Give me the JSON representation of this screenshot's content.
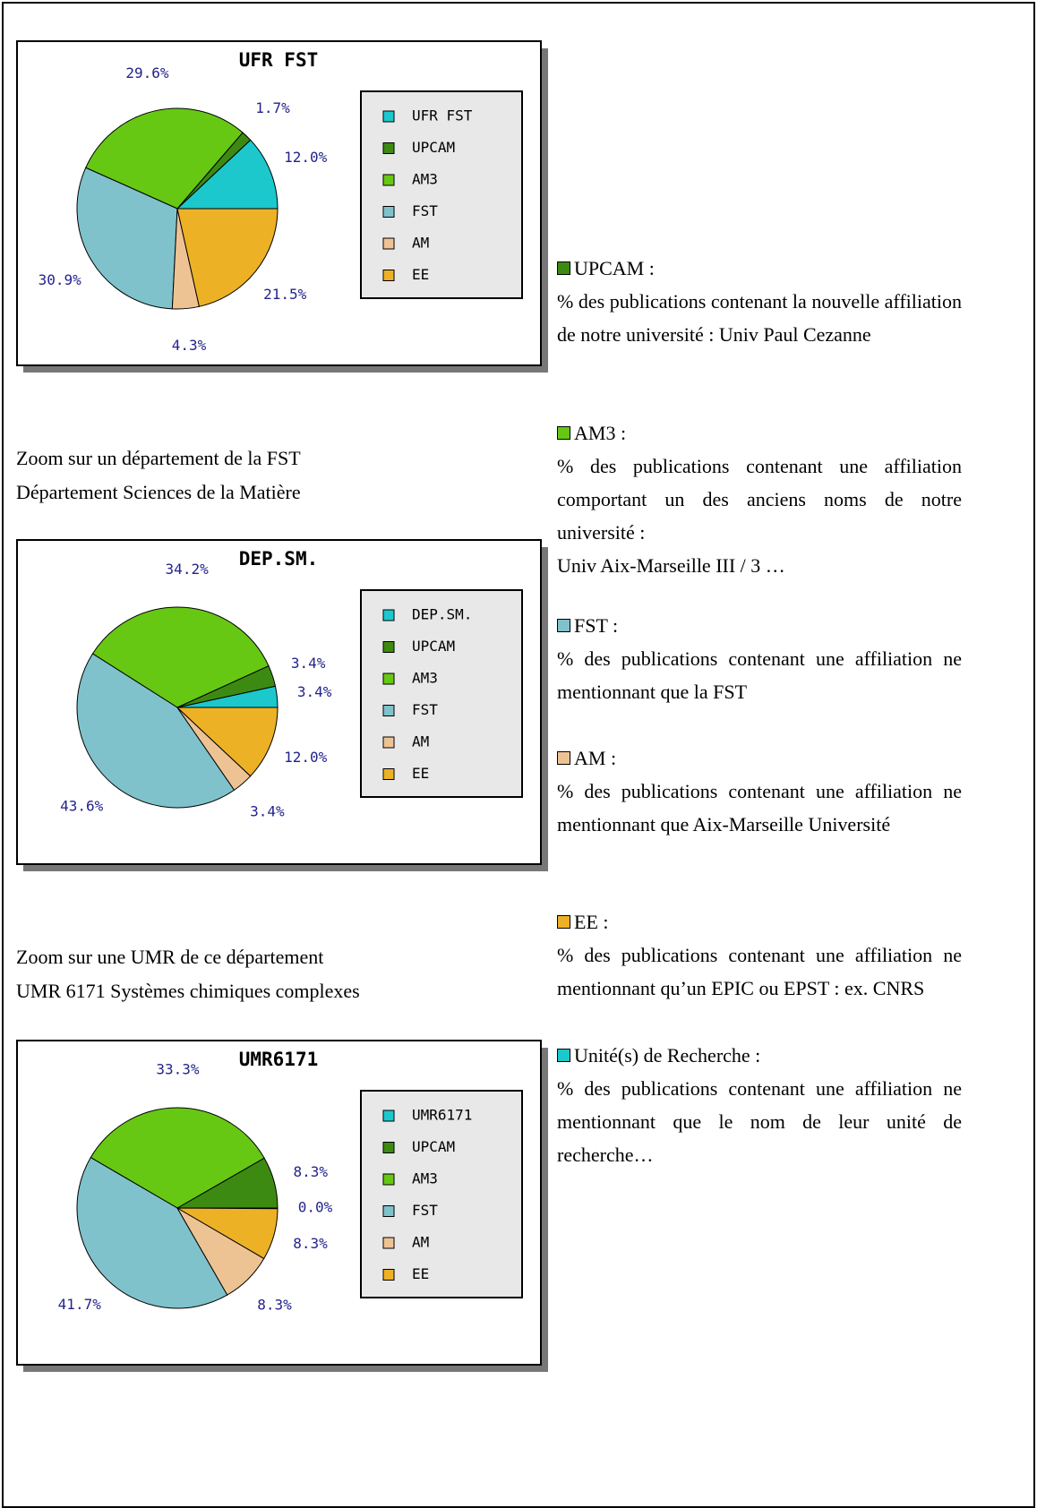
{
  "chart_data": [
    {
      "type": "pie",
      "title": "UFR FST",
      "categories": [
        "UFR FST",
        "UPCAM",
        "AM3",
        "FST",
        "AM",
        "EE"
      ],
      "values": [
        12.0,
        1.7,
        29.6,
        30.9,
        4.3,
        21.5
      ],
      "value_labels": [
        "12.0%",
        "1.7%",
        "29.6%",
        "30.9%",
        "4.3%",
        "21.5%"
      ],
      "colors": [
        "#1cc8cc",
        "#3d8a12",
        "#66c813",
        "#7fc2cb",
        "#eec394",
        "#edb126"
      ]
    },
    {
      "type": "pie",
      "title": "DEP.SM.",
      "categories": [
        "DEP.SM.",
        "UPCAM",
        "AM3",
        "FST",
        "AM",
        "EE"
      ],
      "values": [
        3.4,
        3.4,
        34.2,
        43.6,
        3.4,
        12.0
      ],
      "value_labels": [
        "3.4%",
        "3.4%",
        "34.2%",
        "43.6%",
        "3.4%",
        "12.0%"
      ],
      "colors": [
        "#1cc8cc",
        "#3d8a12",
        "#66c813",
        "#7fc2cb",
        "#eec394",
        "#edb126"
      ]
    },
    {
      "type": "pie",
      "title": "UMR6171",
      "categories": [
        "UMR6171",
        "UPCAM",
        "AM3",
        "FST",
        "AM",
        "EE"
      ],
      "values": [
        0.0,
        8.3,
        33.3,
        41.7,
        8.3,
        8.3
      ],
      "value_labels": [
        "0.0%",
        "8.3%",
        "33.3%",
        "41.7%",
        "8.3%",
        "8.3%"
      ],
      "colors": [
        "#1cc8cc",
        "#3d8a12",
        "#66c813",
        "#7fc2cb",
        "#eec394",
        "#edb126"
      ]
    }
  ],
  "captions": [
    [
      "Zoom sur un département de la FST",
      "Département Sciences de la Matière"
    ],
    [
      "Zoom sur une UMR de ce département",
      "UMR 6171 Systèmes chimiques complexes"
    ]
  ],
  "descriptions": [
    {
      "label": "UPCAM :",
      "color": "#3d8a12",
      "text": "% des publications contenant la nouvelle affiliation de notre université : Univ Paul Cezanne"
    },
    {
      "label": "AM3 :",
      "color": "#66c813",
      "text": "% des publications contenant une affiliation comportant un des anciens noms de notre université :",
      "note": "Univ Aix-Marseille III / 3 …"
    },
    {
      "label": "FST :",
      "color": "#7fc2cb",
      "text": "% des publications contenant une affiliation ne mentionnant que la FST"
    },
    {
      "label": "AM :",
      "color": "#eec394",
      "text": "% des publications contenant une affiliation ne mentionnant que Aix-Marseille Université"
    },
    {
      "label": "EE :",
      "color": "#edb126",
      "text": "% des publications contenant une affiliation ne mentionnant qu’un EPIC ou EPST : ex. CNRS"
    },
    {
      "label": "Unité(s) de Recherche :",
      "color": "#1cc8cc",
      "text": "% des publications contenant une affiliation ne mentionnant que le nom de leur unité de recherche…"
    }
  ]
}
